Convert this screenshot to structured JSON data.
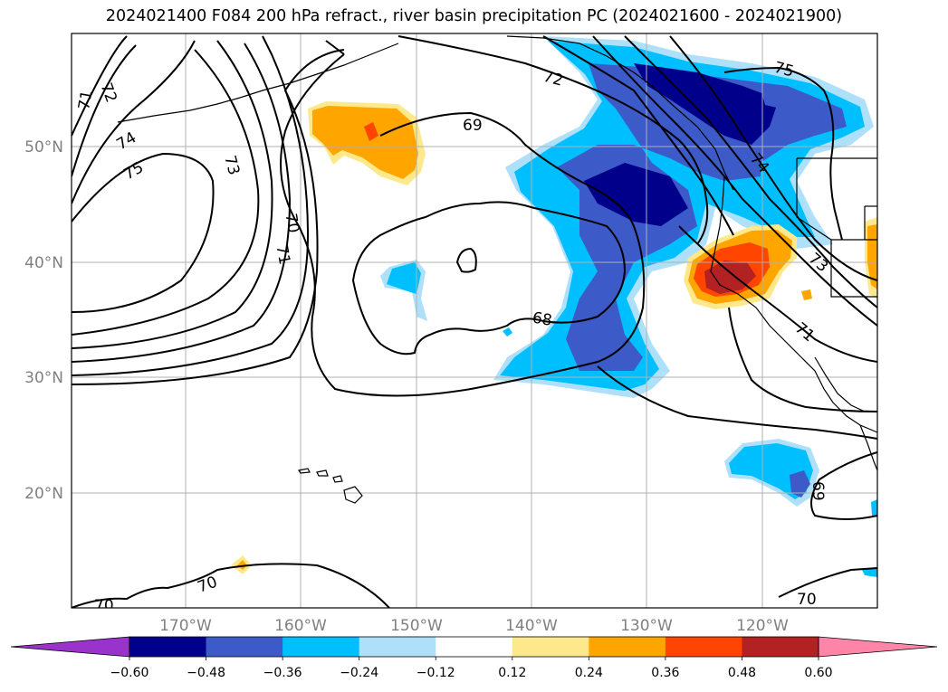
{
  "title": "2024021400 F084 200 hPa refract., river basin precipitation PC (2024021600 - 2024021900)",
  "lat_labels": [
    "50°N",
    "40°N",
    "30°N",
    "20°N"
  ],
  "lon_labels": [
    "170°W",
    "160°W",
    "150°W",
    "140°W",
    "130°W",
    "120°W"
  ],
  "contour_labels": [
    "71",
    "72",
    "74",
    "75",
    "73",
    "70",
    "71",
    "69",
    "72",
    "75",
    "74",
    "68",
    "73",
    "71",
    "69",
    "70",
    "70",
    "70"
  ],
  "colorbar": {
    "colors": [
      "#9933cc",
      "#00008b",
      "#3c5ac8",
      "#00bfff",
      "#aee0fa",
      "#ffffff",
      "#fde98c",
      "#ffa500",
      "#ff4500",
      "#b22222",
      "#ff85a8"
    ],
    "tick_labels": [
      "−0.60",
      "−0.48",
      "−0.36",
      "−0.24",
      "−0.12",
      "0.12",
      "0.24",
      "0.36",
      "0.48",
      "0.60"
    ]
  }
}
